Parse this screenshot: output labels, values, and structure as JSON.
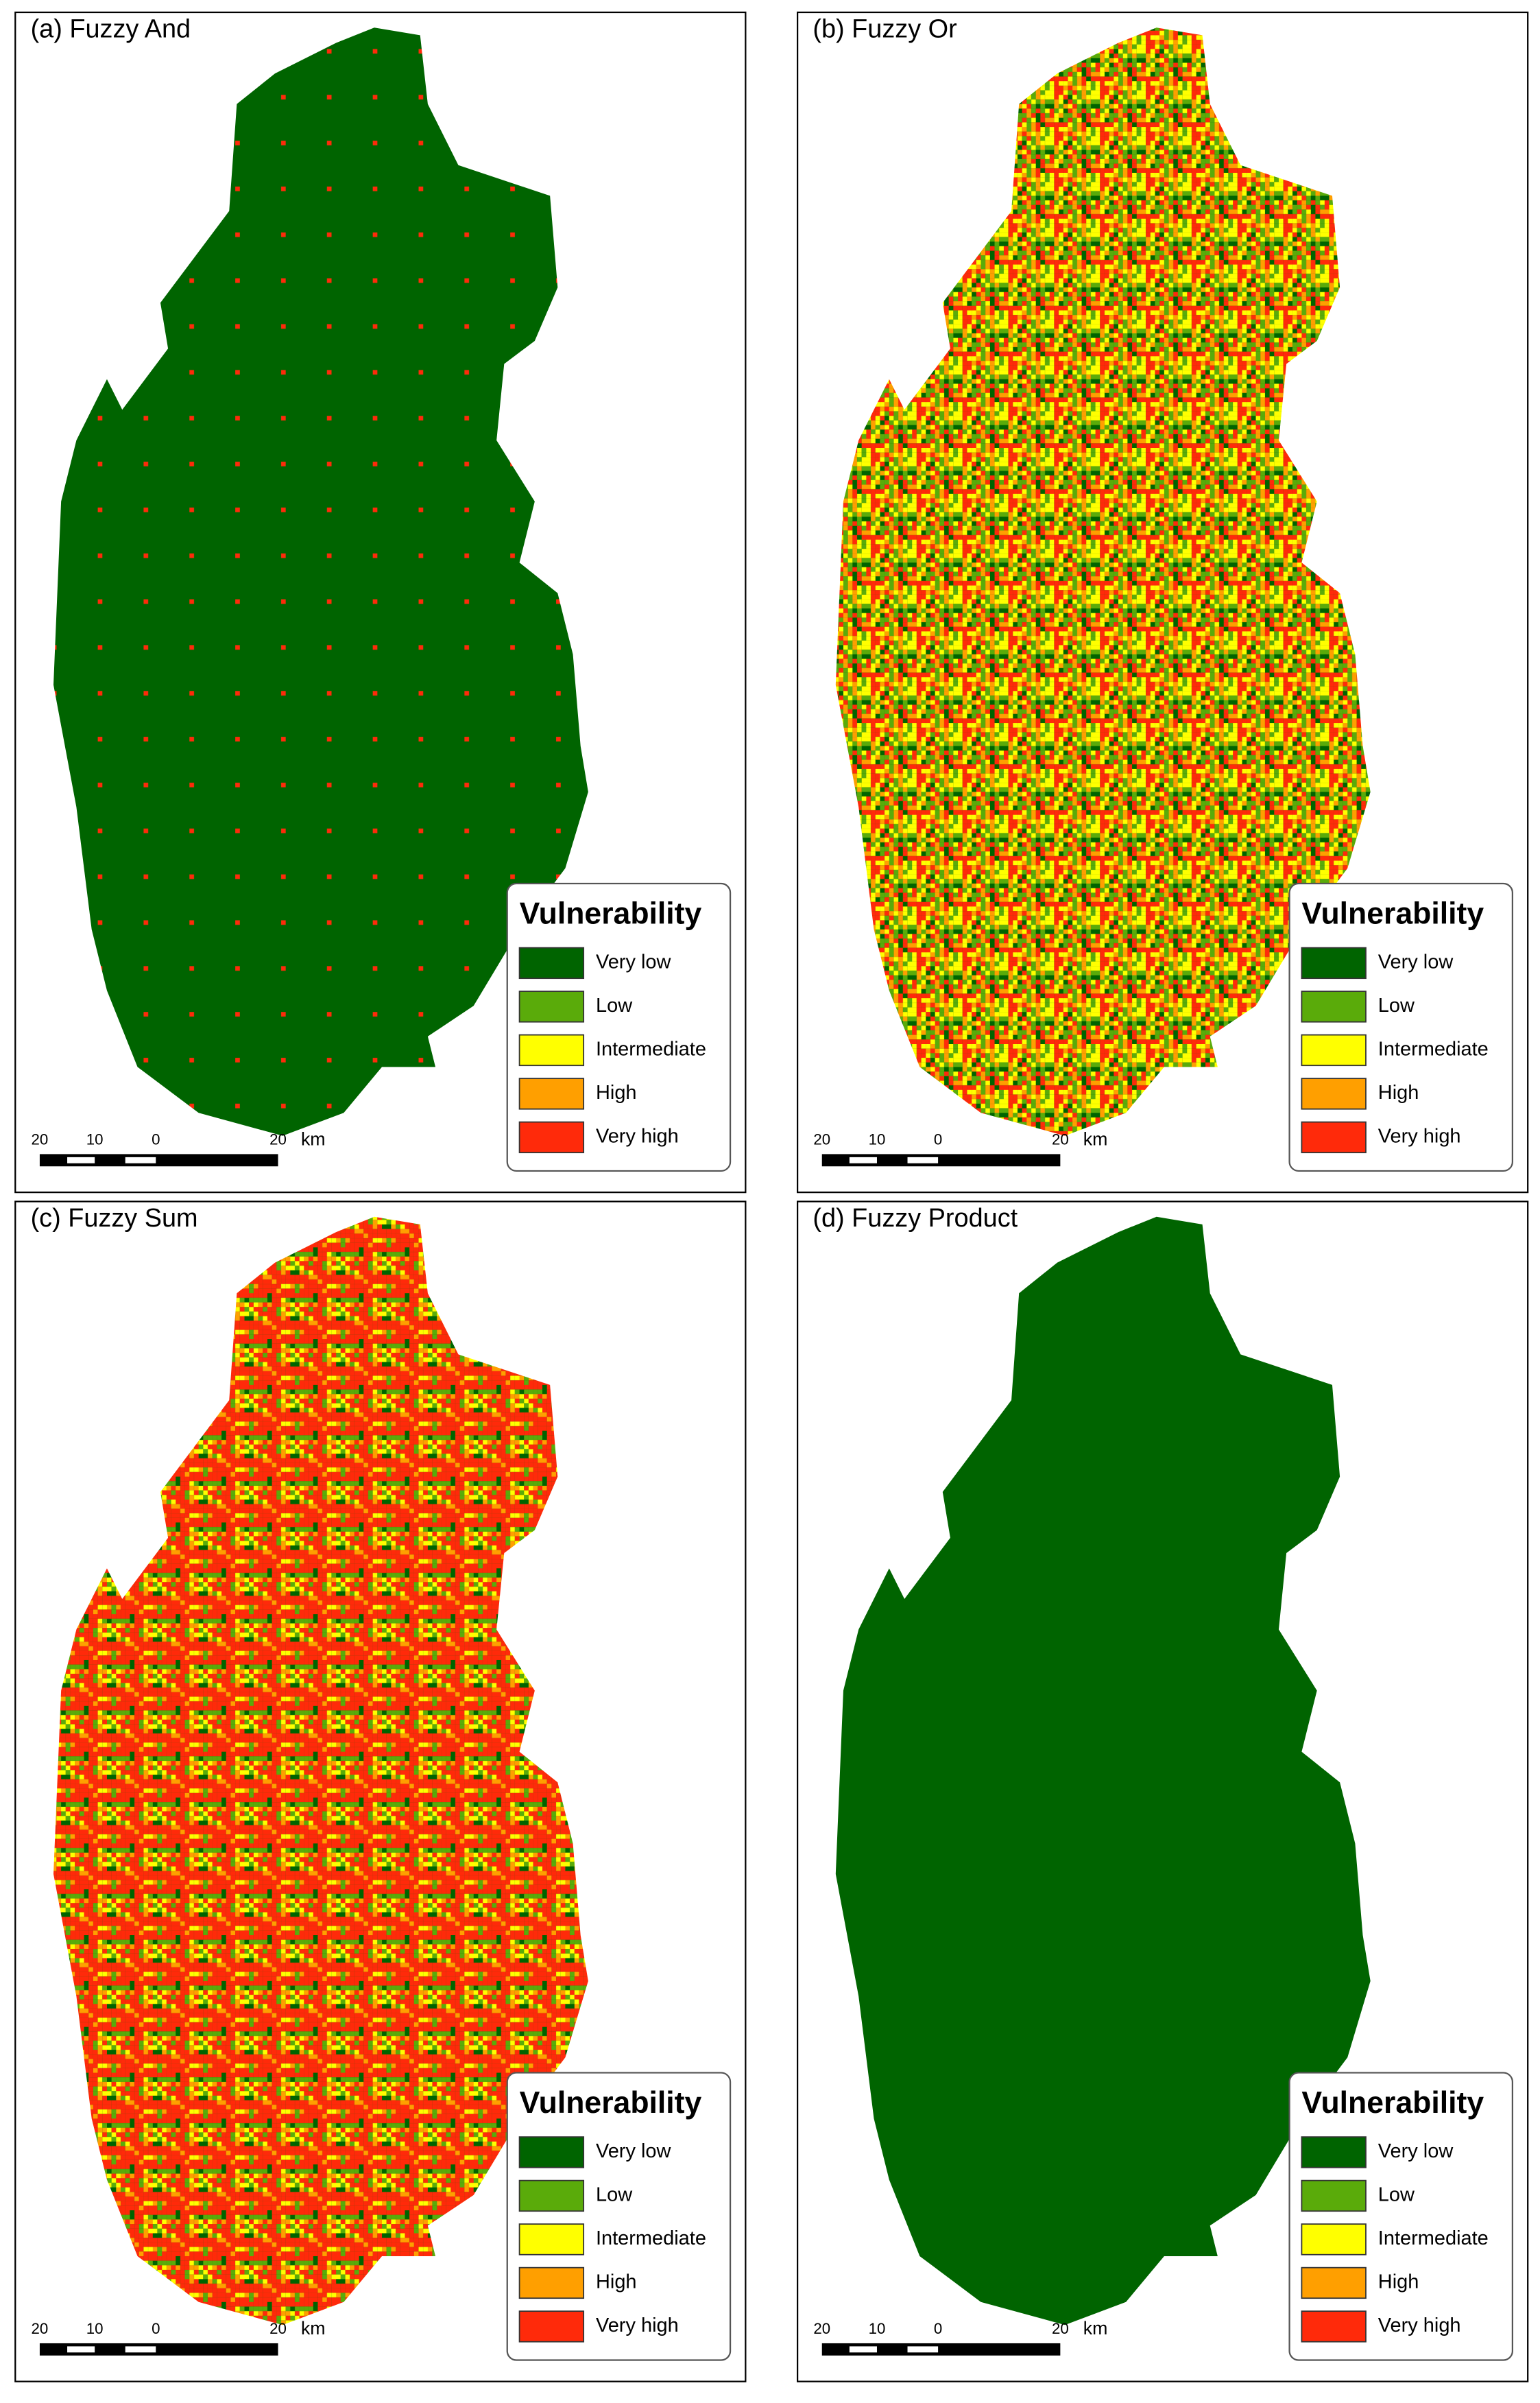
{
  "panels": [
    {
      "title": "(a) Fuzzy And",
      "legend": {
        "title": "Vulnerability",
        "items": [
          {
            "label": "Very low",
            "color": "#006400"
          },
          {
            "label": "Low",
            "color": "#5aab0a"
          },
          {
            "label": "Intermediate",
            "color": "#ffff00"
          },
          {
            "label": "High",
            "color": "#ff9f00"
          },
          {
            "label": "Very high",
            "color": "#ff2a0a"
          }
        ]
      },
      "scale_bar": {
        "labels": [
          "20",
          "10",
          "0",
          "20"
        ],
        "unit": "km"
      }
    },
    {
      "title": "(b) Fuzzy Or",
      "legend": {
        "title": "Vulnerability",
        "items": [
          {
            "label": "Very low",
            "color": "#006400"
          },
          {
            "label": "Low",
            "color": "#5aab0a"
          },
          {
            "label": "Intermediate",
            "color": "#ffff00"
          },
          {
            "label": "High",
            "color": "#ff9f00"
          },
          {
            "label": "Very high",
            "color": "#ff2a0a"
          }
        ]
      },
      "scale_bar": {
        "labels": [
          "20",
          "10",
          "0",
          "20"
        ],
        "unit": "km"
      }
    },
    {
      "title": "(c) Fuzzy Sum",
      "legend": {
        "title": "Vulnerability",
        "items": [
          {
            "label": "Very low",
            "color": "#006400"
          },
          {
            "label": "Low",
            "color": "#5aab0a"
          },
          {
            "label": "Intermediate",
            "color": "#ffff00"
          },
          {
            "label": "High",
            "color": "#ff9f00"
          },
          {
            "label": "Very high",
            "color": "#ff2a0a"
          }
        ]
      },
      "scale_bar": {
        "labels": [
          "20",
          "10",
          "0",
          "20"
        ],
        "unit": "km"
      }
    },
    {
      "title": "(d) Fuzzy Product",
      "legend": {
        "title": "Vulnerability",
        "items": [
          {
            "label": "Very low",
            "color": "#006400"
          },
          {
            "label": "Low",
            "color": "#5aab0a"
          },
          {
            "label": "Intermediate",
            "color": "#ffff00"
          },
          {
            "label": "High",
            "color": "#ff9f00"
          },
          {
            "label": "Very high",
            "color": "#ff2a0a"
          }
        ]
      },
      "scale_bar": {
        "labels": [
          "20",
          "10",
          "0",
          "20"
        ],
        "unit": "km"
      }
    }
  ]
}
